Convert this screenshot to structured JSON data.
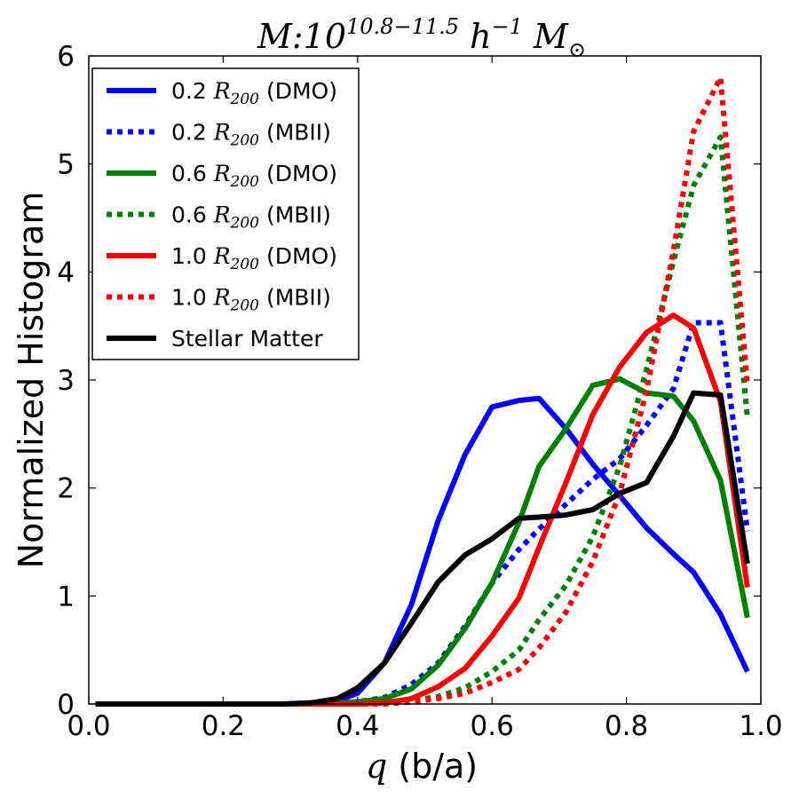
{
  "chart_data": {
    "type": "line",
    "title": {
      "prefix": "M:10",
      "exponent": "10.8−11.5",
      "h": "h",
      "h_exp": "−1",
      "m": "M",
      "m_sub": "⊙"
    },
    "xlabel": {
      "q": "q",
      "text": " (b/a)"
    },
    "ylabel": "Normalized Histogram",
    "xlim": [
      0.0,
      1.0
    ],
    "ylim": [
      0,
      6
    ],
    "xticks": [
      0.0,
      0.2,
      0.4,
      0.6,
      0.8,
      1.0
    ],
    "xtick_labels": [
      "0.0",
      "0.2",
      "0.4",
      "0.6",
      "0.8",
      "1.0"
    ],
    "yticks": [
      0,
      1,
      2,
      3,
      4,
      5,
      6
    ],
    "ytick_labels": [
      "0",
      "1",
      "2",
      "3",
      "4",
      "5",
      "6"
    ],
    "legend_position": "upper-left",
    "x": [
      0.01,
      0.05,
      0.09,
      0.13,
      0.17,
      0.21,
      0.25,
      0.29,
      0.33,
      0.37,
      0.4,
      0.44,
      0.48,
      0.52,
      0.56,
      0.6,
      0.64,
      0.67,
      0.71,
      0.75,
      0.79,
      0.83,
      0.87,
      0.9,
      0.94,
      0.98
    ],
    "series": [
      {
        "name_prefix": "0.2",
        "name_suffix": "(DMO)",
        "color": "#0000ff",
        "style": "solid",
        "values": [
          0,
          0,
          0,
          0,
          0,
          0,
          0,
          0,
          0.01,
          0.03,
          0.1,
          0.38,
          0.92,
          1.7,
          2.31,
          2.75,
          2.81,
          2.83,
          2.55,
          2.22,
          1.93,
          1.63,
          1.39,
          1.22,
          0.83,
          0.3
        ]
      },
      {
        "name_prefix": "0.2",
        "name_suffix": "(MBII)",
        "color": "#0000ff",
        "style": "dotted",
        "values": [
          0,
          0,
          0,
          0,
          0,
          0,
          0,
          0,
          0,
          0.01,
          0.02,
          0.06,
          0.18,
          0.38,
          0.72,
          1.12,
          1.43,
          1.62,
          1.85,
          2.08,
          2.27,
          2.58,
          2.92,
          3.53,
          3.53,
          1.6
        ]
      },
      {
        "name_prefix": "0.6",
        "name_suffix": "(DMO)",
        "color": "#008000",
        "style": "solid",
        "values": [
          0,
          0,
          0,
          0,
          0,
          0,
          0,
          0,
          0,
          0.01,
          0.02,
          0.05,
          0.14,
          0.36,
          0.7,
          1.12,
          1.68,
          2.2,
          2.55,
          2.95,
          3.01,
          2.88,
          2.85,
          2.62,
          2.07,
          0.8
        ]
      },
      {
        "name_prefix": "0.6",
        "name_suffix": "(MBII)",
        "color": "#008000",
        "style": "dotted",
        "values": [
          0,
          0,
          0,
          0,
          0,
          0,
          0,
          0,
          0,
          0,
          0,
          0.01,
          0.03,
          0.07,
          0.15,
          0.3,
          0.5,
          0.78,
          1.1,
          1.55,
          2.2,
          3.1,
          4.1,
          4.8,
          5.25,
          2.65
        ]
      },
      {
        "name_prefix": "1.0",
        "name_suffix": "(DMO)",
        "color": "#ff0000",
        "style": "solid",
        "values": [
          0,
          0,
          0,
          0,
          0,
          0,
          0,
          0,
          0,
          0,
          0,
          0.01,
          0.05,
          0.16,
          0.33,
          0.63,
          0.98,
          1.45,
          2.05,
          2.68,
          3.12,
          3.44,
          3.6,
          3.48,
          2.8,
          1.08
        ]
      },
      {
        "name_prefix": "1.0",
        "name_suffix": "(MBII)",
        "color": "#ff0000",
        "style": "dotted",
        "values": [
          0,
          0,
          0,
          0,
          0,
          0,
          0,
          0,
          0,
          0,
          0,
          0,
          0.02,
          0.05,
          0.1,
          0.2,
          0.32,
          0.52,
          0.85,
          1.32,
          1.95,
          2.9,
          4.2,
          5.3,
          5.8,
          2.95
        ]
      },
      {
        "name_prefix": "",
        "name_suffix": "Stellar Matter",
        "color": "#000000",
        "style": "solid",
        "values": [
          0,
          0,
          0,
          0,
          0,
          0,
          0,
          0,
          0.01,
          0.05,
          0.15,
          0.38,
          0.75,
          1.13,
          1.38,
          1.53,
          1.72,
          1.73,
          1.75,
          1.8,
          1.95,
          2.05,
          2.48,
          2.88,
          2.86,
          1.3
        ]
      }
    ],
    "legend_unit": {
      "base": "R",
      "sub": "200"
    }
  }
}
